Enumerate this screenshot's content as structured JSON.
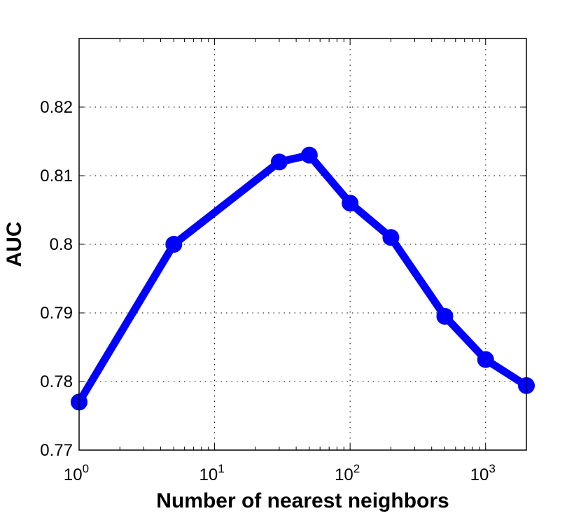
{
  "chart_data": {
    "type": "line",
    "title": "",
    "xlabel": "Number of nearest neighbors",
    "ylabel": "AUC",
    "xscale": "log",
    "xlim": [
      1,
      2000
    ],
    "ylim": [
      0.77,
      0.83
    ],
    "grid": true,
    "x_ticks": [
      {
        "value": 1,
        "base": "10",
        "exp": "0"
      },
      {
        "value": 10,
        "base": "10",
        "exp": "1"
      },
      {
        "value": 100,
        "base": "10",
        "exp": "2"
      },
      {
        "value": 1000,
        "base": "10",
        "exp": "3"
      }
    ],
    "y_ticks": [
      {
        "value": 0.77,
        "label": "0.77"
      },
      {
        "value": 0.78,
        "label": "0.78"
      },
      {
        "value": 0.79,
        "label": "0.79"
      },
      {
        "value": 0.8,
        "label": "0.8"
      },
      {
        "value": 0.81,
        "label": "0.81"
      },
      {
        "value": 0.82,
        "label": "0.82"
      }
    ],
    "series": [
      {
        "color": "#0000ff",
        "marker": "circle",
        "x": [
          1,
          5,
          30,
          50,
          100,
          200,
          500,
          1000,
          2000
        ],
        "y": [
          0.777,
          0.8,
          0.812,
          0.813,
          0.806,
          0.801,
          0.7895,
          0.7832,
          0.7794
        ]
      }
    ]
  }
}
